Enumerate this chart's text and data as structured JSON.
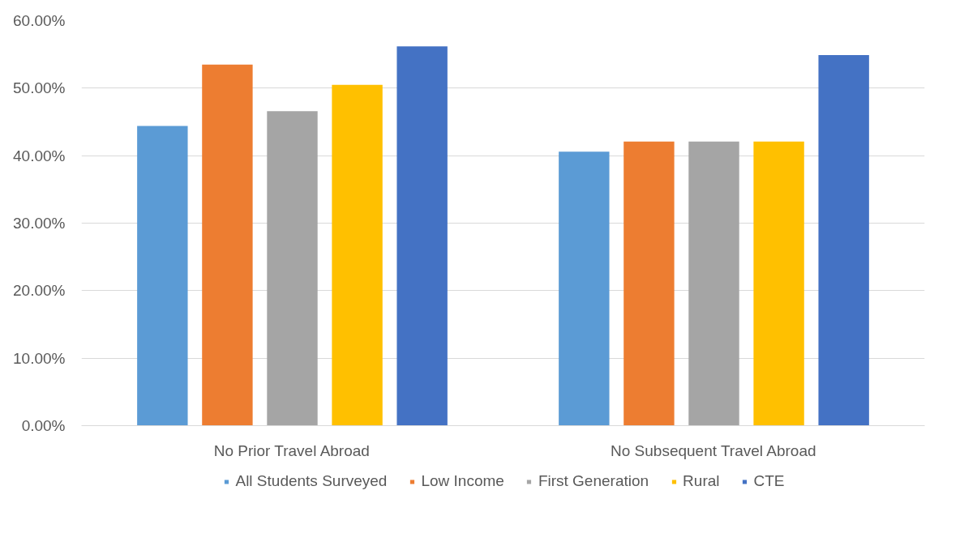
{
  "chart_data": {
    "type": "bar",
    "categories": [
      "No Prior Travel Abroad",
      "No Subsequent Travel Abroad"
    ],
    "series": [
      {
        "name": "All Students Surveyed",
        "color": "#5b9bd5",
        "values": [
          44.4,
          40.6
        ]
      },
      {
        "name": "Low Income",
        "color": "#ed7d31",
        "values": [
          53.5,
          42.1
        ]
      },
      {
        "name": "First Generation",
        "color": "#a5a5a5",
        "values": [
          46.6,
          42.1
        ]
      },
      {
        "name": "Rural",
        "color": "#ffc000",
        "values": [
          50.5,
          42.1
        ]
      },
      {
        "name": "CTE",
        "color": "#4472c4",
        "values": [
          56.2,
          54.9
        ]
      }
    ],
    "ylim": [
      0,
      60
    ],
    "yticks": [
      {
        "value": 0,
        "label": "0.00%"
      },
      {
        "value": 10,
        "label": "10.00%"
      },
      {
        "value": 20,
        "label": "20.00%"
      },
      {
        "value": 30,
        "label": "30.00%"
      },
      {
        "value": 40,
        "label": "40.00%"
      },
      {
        "value": 50,
        "label": "50.00%"
      },
      {
        "value": 60,
        "label": "60.00%"
      }
    ],
    "grid": "y",
    "legend": "bottom"
  }
}
